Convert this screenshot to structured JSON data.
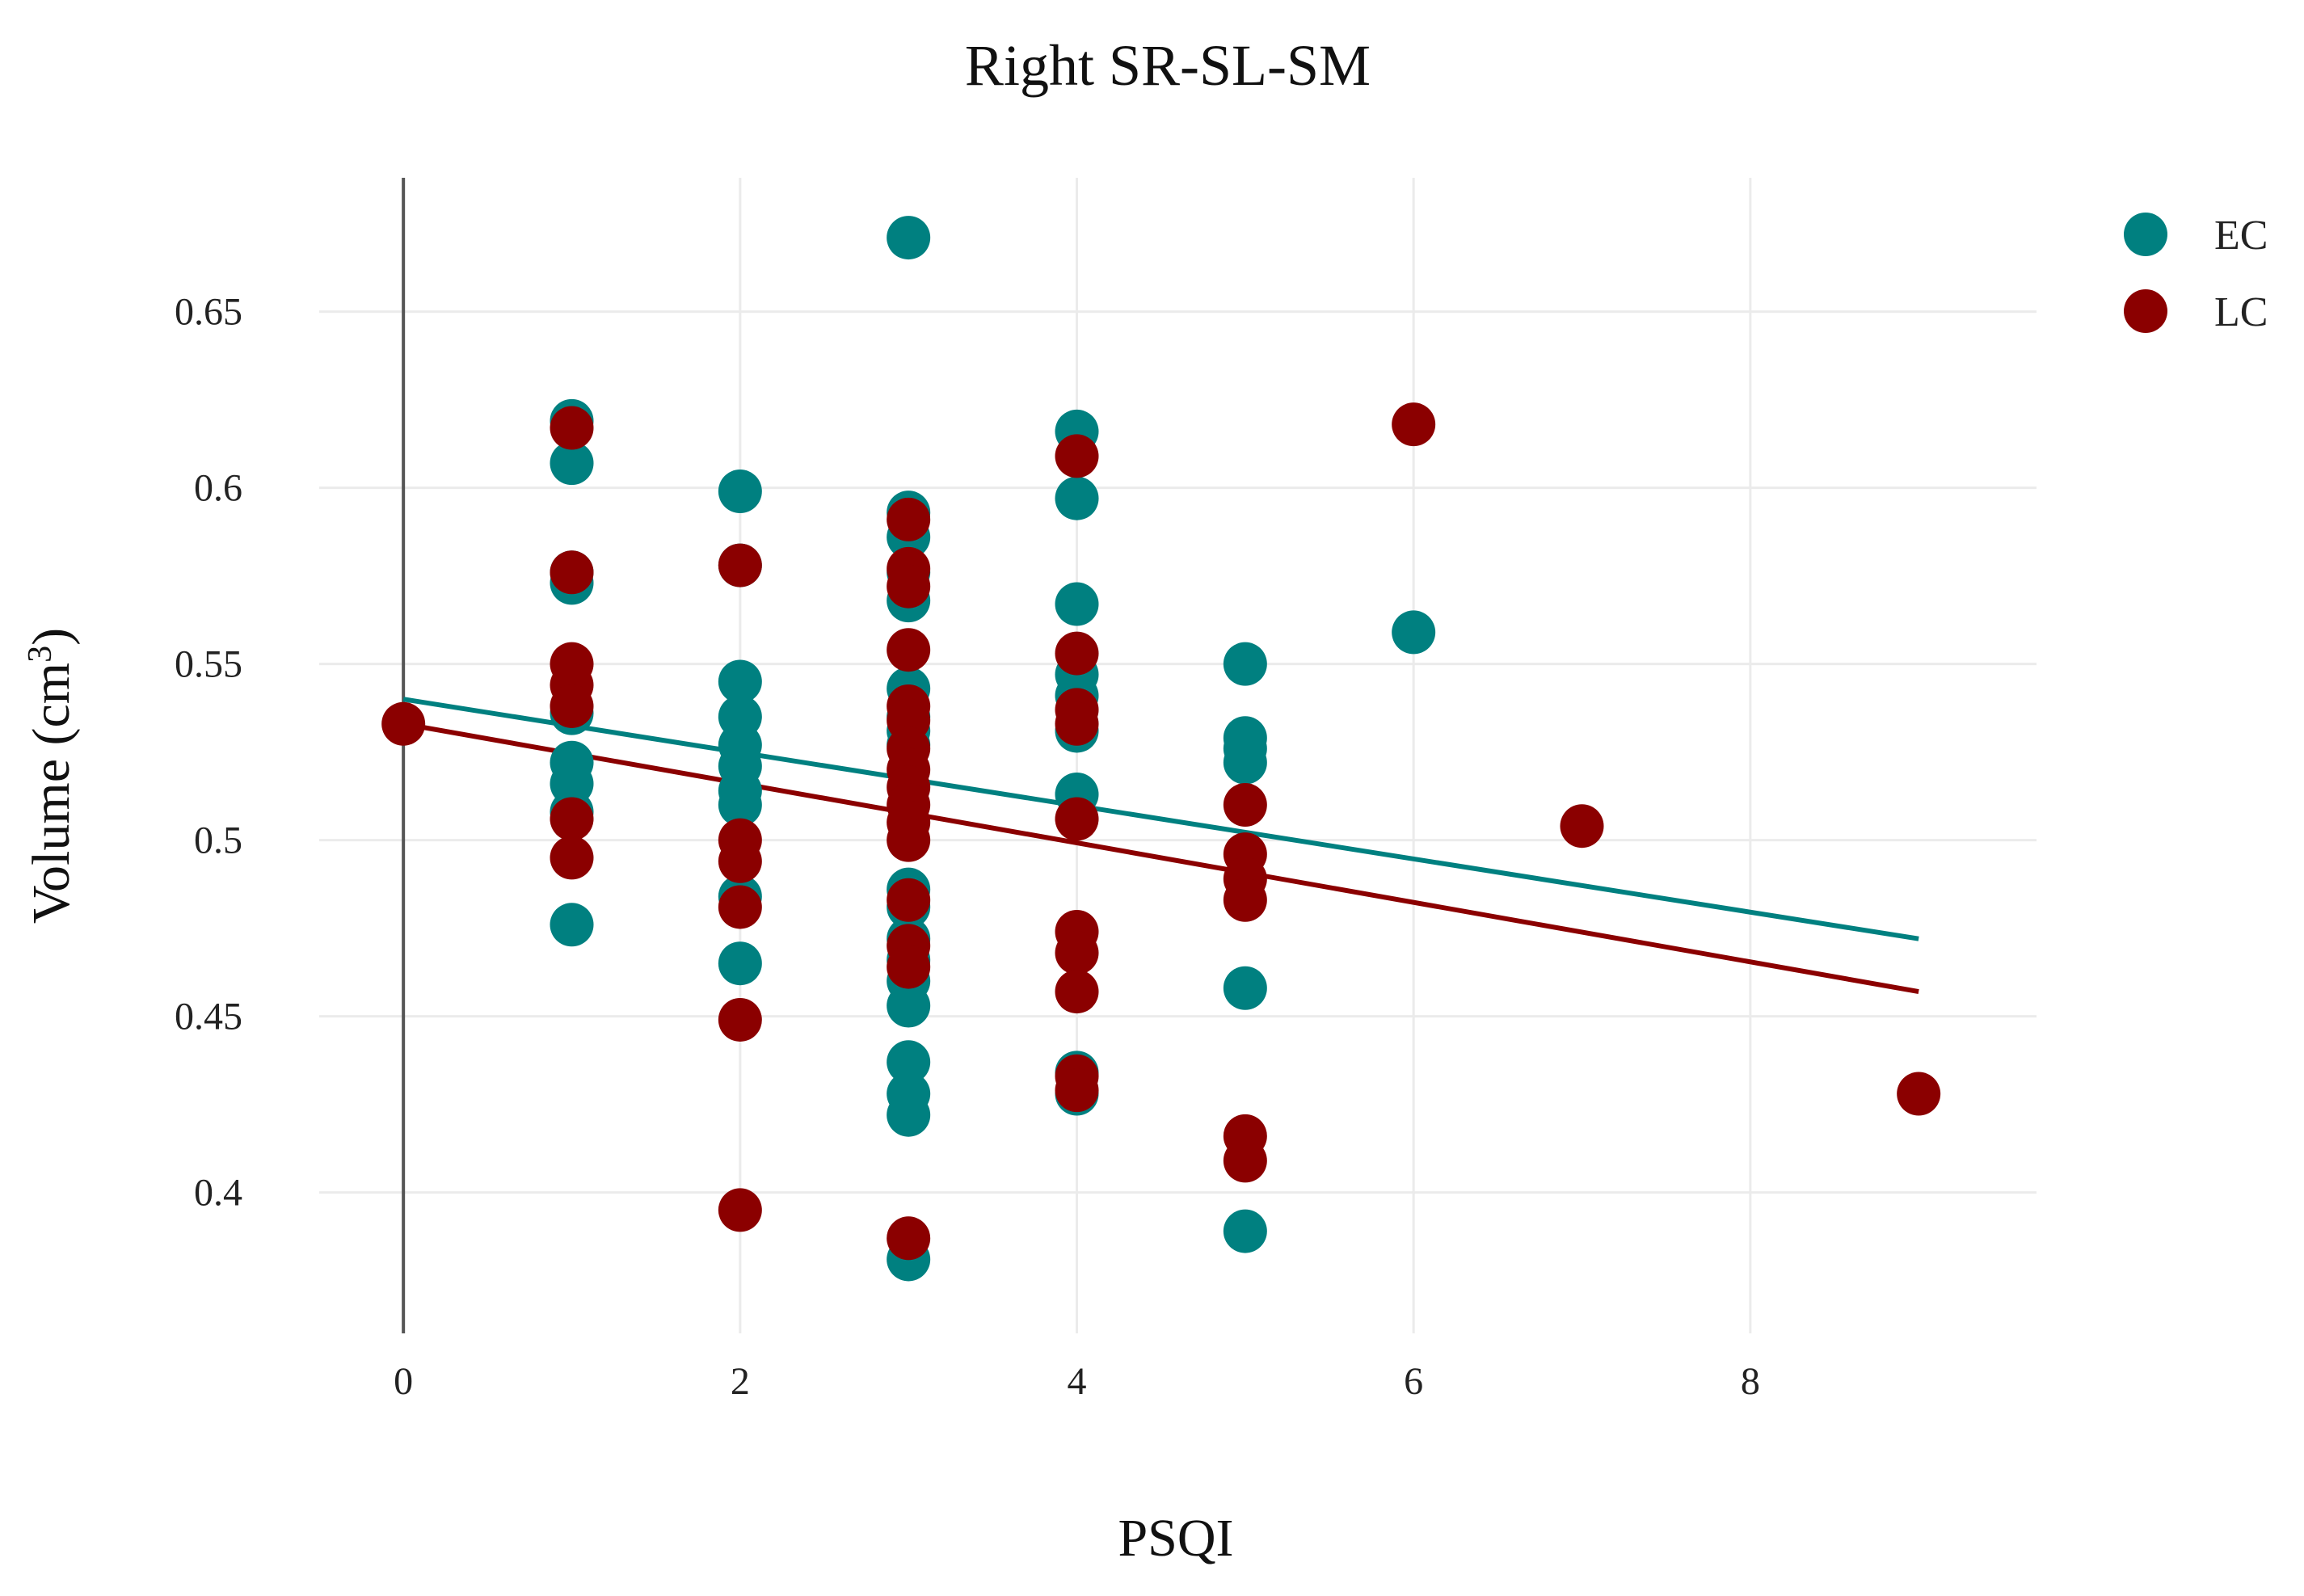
{
  "chart_data": {
    "type": "scatter",
    "title": "Right SR-SL-SM",
    "xlabel": "PSQI",
    "ylabel": "Volume (cm³)",
    "ylabel_parts": {
      "main": "Volume (cm",
      "sup": "3",
      "end": ")"
    },
    "xlim": [
      -0.5,
      9.7
    ],
    "ylim": [
      0.36,
      0.688
    ],
    "x_ticks": [
      0,
      2,
      4,
      6,
      8
    ],
    "x_tick_labels": [
      "0",
      "2",
      "4",
      "6",
      "8"
    ],
    "y_ticks": [
      0.4,
      0.45,
      0.5,
      0.55,
      0.6,
      0.65
    ],
    "y_tick_labels": [
      "0.4",
      "0.45",
      "0.5",
      "0.55",
      "0.6",
      "0.65"
    ],
    "grid": true,
    "legend_position": "top-right",
    "series": [
      {
        "name": "EC",
        "color": "#008080",
        "points": [
          [
            1,
            0.619
          ],
          [
            1,
            0.607
          ],
          [
            1,
            0.576
          ],
          [
            1,
            0.573
          ],
          [
            1,
            0.536
          ],
          [
            1,
            0.522
          ],
          [
            1,
            0.516
          ],
          [
            1,
            0.508
          ],
          [
            1,
            0.476
          ],
          [
            2,
            0.599
          ],
          [
            2,
            0.578
          ],
          [
            2,
            0.545
          ],
          [
            2,
            0.535
          ],
          [
            2,
            0.527
          ],
          [
            2,
            0.521
          ],
          [
            2,
            0.514
          ],
          [
            2,
            0.51
          ],
          [
            2,
            0.484
          ],
          [
            2,
            0.465
          ],
          [
            3,
            0.671
          ],
          [
            3,
            0.593
          ],
          [
            3,
            0.586
          ],
          [
            3,
            0.576
          ],
          [
            3,
            0.568
          ],
          [
            3,
            0.543
          ],
          [
            3,
            0.535
          ],
          [
            3,
            0.531
          ],
          [
            3,
            0.527
          ],
          [
            3,
            0.486
          ],
          [
            3,
            0.481
          ],
          [
            3,
            0.472
          ],
          [
            3,
            0.466
          ],
          [
            3,
            0.46
          ],
          [
            3,
            0.453
          ],
          [
            3,
            0.437
          ],
          [
            3,
            0.428
          ],
          [
            3,
            0.422
          ],
          [
            3,
            0.381
          ],
          [
            4,
            0.616
          ],
          [
            4,
            0.597
          ],
          [
            4,
            0.567
          ],
          [
            4,
            0.547
          ],
          [
            4,
            0.541
          ],
          [
            4,
            0.531
          ],
          [
            4,
            0.513
          ],
          [
            4,
            0.434
          ],
          [
            4,
            0.428
          ],
          [
            5,
            0.55
          ],
          [
            5,
            0.529
          ],
          [
            5,
            0.526
          ],
          [
            5,
            0.522
          ],
          [
            5,
            0.458
          ],
          [
            5,
            0.389
          ],
          [
            6,
            0.559
          ]
        ]
      },
      {
        "name": "LC",
        "color": "#8b0000",
        "points": [
          [
            0,
            0.533
          ],
          [
            1,
            0.617
          ],
          [
            1,
            0.576
          ],
          [
            1,
            0.55
          ],
          [
            1,
            0.544
          ],
          [
            1,
            0.538
          ],
          [
            1,
            0.506
          ],
          [
            1,
            0.495
          ],
          [
            2,
            0.578
          ],
          [
            2,
            0.5
          ],
          [
            2,
            0.494
          ],
          [
            2,
            0.481
          ],
          [
            2,
            0.449
          ],
          [
            2,
            0.395
          ],
          [
            3,
            0.591
          ],
          [
            3,
            0.577
          ],
          [
            3,
            0.572
          ],
          [
            3,
            0.554
          ],
          [
            3,
            0.538
          ],
          [
            3,
            0.534
          ],
          [
            3,
            0.526
          ],
          [
            3,
            0.52
          ],
          [
            3,
            0.515
          ],
          [
            3,
            0.51
          ],
          [
            3,
            0.505
          ],
          [
            3,
            0.5
          ],
          [
            3,
            0.483
          ],
          [
            3,
            0.47
          ],
          [
            3,
            0.464
          ],
          [
            3,
            0.387
          ],
          [
            4,
            0.609
          ],
          [
            4,
            0.553
          ],
          [
            4,
            0.537
          ],
          [
            4,
            0.533
          ],
          [
            4,
            0.506
          ],
          [
            4,
            0.474
          ],
          [
            4,
            0.468
          ],
          [
            4,
            0.457
          ],
          [
            4,
            0.433
          ],
          [
            4,
            0.429
          ],
          [
            5,
            0.51
          ],
          [
            5,
            0.496
          ],
          [
            5,
            0.489
          ],
          [
            5,
            0.483
          ],
          [
            5,
            0.416
          ],
          [
            5,
            0.409
          ],
          [
            6,
            0.618
          ],
          [
            7,
            0.504
          ],
          [
            9,
            0.428
          ]
        ]
      }
    ],
    "fit_lines": [
      {
        "name": "EC",
        "color": "#008080",
        "x": [
          0,
          9
        ],
        "y": [
          0.54,
          0.472
        ]
      },
      {
        "name": "LC",
        "color": "#8b0000",
        "x": [
          0,
          9
        ],
        "y": [
          0.533,
          0.457
        ]
      }
    ]
  }
}
